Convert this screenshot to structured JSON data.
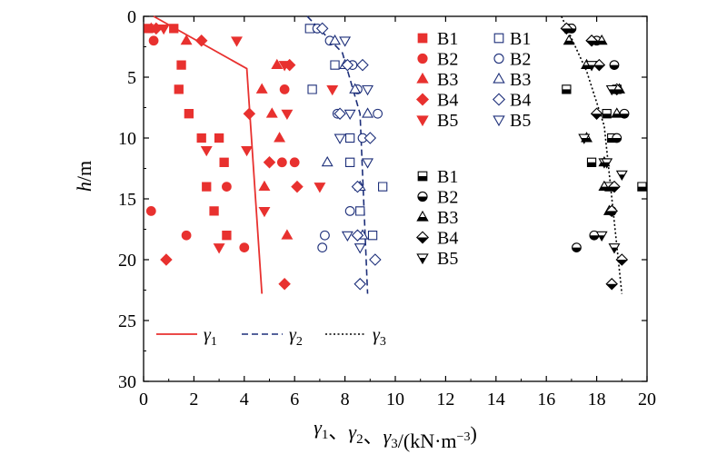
{
  "chart_data": {
    "type": "scatter",
    "title": "",
    "xlabel": "γ1、γ2、γ3/(kN·m−3)",
    "ylabel": "h/m",
    "xlim": [
      0,
      20
    ],
    "ylim": [
      0,
      30
    ],
    "y_inverted": true,
    "x_axis_position": "top",
    "x_ticks": [
      "0",
      "2",
      "4",
      "6",
      "8",
      "10",
      "12",
      "14",
      "16",
      "18",
      "20"
    ],
    "y_ticks": [
      "0",
      "5",
      "10",
      "15",
      "20",
      "25",
      "30"
    ],
    "grid": false,
    "colors": {
      "gamma1": "#e8312f",
      "gamma2": "#1d2f7a",
      "gamma3": "#000000"
    },
    "lines": [
      {
        "name": "γ1",
        "style": "solid",
        "color": "#e8312f",
        "points": [
          [
            0.4,
            0
          ],
          [
            4.1,
            4.3
          ],
          [
            4.7,
            22.8
          ]
        ]
      },
      {
        "name": "γ2",
        "style": "dashed",
        "color": "#1d2f7a",
        "points": [
          [
            6.5,
            0
          ],
          [
            7.9,
            3
          ],
          [
            8.6,
            8
          ],
          [
            8.9,
            22.8
          ]
        ]
      },
      {
        "name": "γ3",
        "style": "dotted",
        "color": "#000000",
        "points": [
          [
            16.6,
            0
          ],
          [
            17.6,
            4.5
          ],
          [
            18.3,
            9
          ],
          [
            19.0,
            22.8
          ]
        ]
      }
    ],
    "series": [
      {
        "name": "B1",
        "group": "gamma1",
        "marker": "square-filled",
        "points": [
          [
            0.2,
            1
          ],
          [
            1.2,
            1
          ],
          [
            1.5,
            4
          ],
          [
            1.4,
            6
          ],
          [
            1.8,
            8
          ],
          [
            2.3,
            10
          ],
          [
            3.0,
            10
          ],
          [
            3.2,
            12
          ],
          [
            2.5,
            14
          ],
          [
            2.8,
            16
          ],
          [
            3.3,
            18
          ]
        ]
      },
      {
        "name": "B2",
        "group": "gamma1",
        "marker": "circle-filled",
        "points": [
          [
            0.4,
            2
          ],
          [
            3.3,
            14
          ],
          [
            0.3,
            16
          ],
          [
            1.7,
            18
          ],
          [
            4.0,
            19
          ],
          [
            5.6,
            6
          ],
          [
            6.0,
            12
          ],
          [
            5.5,
            12
          ]
        ]
      },
      {
        "name": "B3",
        "group": "gamma1",
        "marker": "triangle-up-filled",
        "points": [
          [
            0.3,
            1
          ],
          [
            1.7,
            2
          ],
          [
            5.3,
            4
          ],
          [
            4.7,
            6
          ],
          [
            5.1,
            8
          ],
          [
            5.4,
            10
          ],
          [
            4.8,
            14
          ],
          [
            5.7,
            18
          ]
        ]
      },
      {
        "name": "B4",
        "group": "gamma1",
        "marker": "diamond-filled",
        "points": [
          [
            0.5,
            1
          ],
          [
            2.3,
            2
          ],
          [
            5.8,
            4
          ],
          [
            4.2,
            8
          ],
          [
            5.0,
            12
          ],
          [
            6.1,
            14
          ],
          [
            5.6,
            22
          ],
          [
            0.9,
            20
          ]
        ]
      },
      {
        "name": "B5",
        "group": "gamma1",
        "marker": "triangle-down-filled",
        "points": [
          [
            0.8,
            1
          ],
          [
            3.7,
            2
          ],
          [
            5.6,
            4
          ],
          [
            7.5,
            6
          ],
          [
            2.5,
            11
          ],
          [
            4.1,
            11
          ],
          [
            5.7,
            8
          ],
          [
            7.0,
            14
          ],
          [
            4.8,
            16
          ],
          [
            3.0,
            19
          ]
        ]
      },
      {
        "name": "B1",
        "group": "gamma2",
        "marker": "square-open",
        "points": [
          [
            6.6,
            1
          ],
          [
            7.6,
            4
          ],
          [
            6.7,
            6
          ],
          [
            8.2,
            10
          ],
          [
            8.2,
            12
          ],
          [
            9.5,
            14
          ],
          [
            8.6,
            16
          ],
          [
            9.1,
            18
          ]
        ]
      },
      {
        "name": "B2",
        "group": "gamma2",
        "marker": "circle-open",
        "points": [
          [
            6.9,
            1
          ],
          [
            7.4,
            2
          ],
          [
            8.5,
            6
          ],
          [
            8.7,
            10
          ],
          [
            8.2,
            16
          ],
          [
            7.2,
            18
          ],
          [
            7.1,
            19
          ],
          [
            8.3,
            4
          ],
          [
            9.3,
            8
          ],
          [
            7.7,
            8
          ]
        ]
      },
      {
        "name": "B3",
        "group": "gamma2",
        "marker": "triangle-up-open",
        "points": [
          [
            7.6,
            2
          ],
          [
            8.0,
            4
          ],
          [
            8.9,
            8
          ],
          [
            7.3,
            12
          ],
          [
            8.6,
            14
          ],
          [
            8.7,
            18
          ],
          [
            8.4,
            6
          ]
        ]
      },
      {
        "name": "B4",
        "group": "gamma2",
        "marker": "diamond-open",
        "points": [
          [
            7.1,
            1
          ],
          [
            8.7,
            4
          ],
          [
            7.8,
            8
          ],
          [
            9.0,
            10
          ],
          [
            8.5,
            14
          ],
          [
            8.5,
            18
          ],
          [
            9.2,
            20
          ],
          [
            8.6,
            22
          ],
          [
            8.1,
            4
          ]
        ]
      },
      {
        "name": "B5",
        "group": "gamma2",
        "marker": "triangle-down-open",
        "points": [
          [
            8.0,
            2
          ],
          [
            8.9,
            6
          ],
          [
            8.2,
            8
          ],
          [
            7.8,
            10
          ],
          [
            8.9,
            12
          ],
          [
            8.1,
            18
          ],
          [
            8.6,
            19
          ]
        ]
      },
      {
        "name": "B1",
        "group": "gamma3",
        "marker": "square-half",
        "points": [
          [
            16.9,
            1
          ],
          [
            16.8,
            6
          ],
          [
            18.8,
            6
          ],
          [
            18.4,
            8
          ],
          [
            18.6,
            10
          ],
          [
            17.8,
            12
          ],
          [
            19.8,
            14
          ],
          [
            18.5,
            14
          ]
        ]
      },
      {
        "name": "B2",
        "group": "gamma3",
        "marker": "circle-half",
        "points": [
          [
            17.0,
            1
          ],
          [
            18.0,
            2
          ],
          [
            18.7,
            4
          ],
          [
            19.1,
            8
          ],
          [
            18.8,
            10
          ],
          [
            18.6,
            16
          ],
          [
            17.9,
            18
          ],
          [
            17.2,
            19
          ]
        ]
      },
      {
        "name": "B3",
        "group": "gamma3",
        "marker": "triangle-up-half",
        "points": [
          [
            16.9,
            2
          ],
          [
            18.2,
            2
          ],
          [
            17.6,
            4
          ],
          [
            18.9,
            6
          ],
          [
            18.8,
            8
          ],
          [
            17.6,
            10
          ],
          [
            18.3,
            12
          ],
          [
            18.3,
            14
          ],
          [
            18.5,
            16
          ]
        ]
      },
      {
        "name": "B4",
        "group": "gamma3",
        "marker": "diamond-half",
        "points": [
          [
            16.8,
            1
          ],
          [
            17.8,
            2
          ],
          [
            18.1,
            4
          ],
          [
            18.0,
            8
          ],
          [
            18.7,
            14
          ],
          [
            18.6,
            16
          ],
          [
            19.0,
            20
          ],
          [
            18.6,
            22
          ],
          [
            18.8,
            6
          ]
        ]
      },
      {
        "name": "B5",
        "group": "gamma3",
        "marker": "triangle-down-half",
        "points": [
          [
            17.8,
            4
          ],
          [
            18.6,
            6
          ],
          [
            17.5,
            10
          ],
          [
            18.3,
            12
          ],
          [
            19.0,
            13
          ],
          [
            18.2,
            18
          ],
          [
            18.7,
            19
          ],
          [
            18.4,
            12
          ]
        ]
      }
    ],
    "legend_markers": [
      {
        "position": "top-right",
        "entries": [
          {
            "label": "B1",
            "marker": "square-filled",
            "group": "gamma1"
          },
          {
            "label": "B2",
            "marker": "circle-filled",
            "group": "gamma1"
          },
          {
            "label": "B3",
            "marker": "triangle-up-filled",
            "group": "gamma1"
          },
          {
            "label": "B4",
            "marker": "diamond-filled",
            "group": "gamma1"
          },
          {
            "label": "B5",
            "marker": "triangle-down-filled",
            "group": "gamma1"
          }
        ]
      },
      {
        "position": "top-right",
        "entries": [
          {
            "label": "B1",
            "marker": "square-open",
            "group": "gamma2"
          },
          {
            "label": "B2",
            "marker": "circle-open",
            "group": "gamma2"
          },
          {
            "label": "B3",
            "marker": "triangle-up-open",
            "group": "gamma2"
          },
          {
            "label": "B4",
            "marker": "diamond-open",
            "group": "gamma2"
          },
          {
            "label": "B5",
            "marker": "triangle-down-open",
            "group": "gamma2"
          }
        ]
      },
      {
        "position": "right",
        "entries": [
          {
            "label": "B1",
            "marker": "square-half",
            "group": "gamma3"
          },
          {
            "label": "B2",
            "marker": "circle-half",
            "group": "gamma3"
          },
          {
            "label": "B3",
            "marker": "triangle-up-half",
            "group": "gamma3"
          },
          {
            "label": "B4",
            "marker": "diamond-half",
            "group": "gamma3"
          },
          {
            "label": "B5",
            "marker": "triangle-down-half",
            "group": "gamma3"
          }
        ]
      }
    ],
    "legend_lines": {
      "position": "bottom-left",
      "entries": [
        {
          "label": "γ1",
          "style": "solid",
          "group": "gamma1"
        },
        {
          "label": "γ2",
          "style": "dashed",
          "group": "gamma2"
        },
        {
          "label": "γ3",
          "style": "dotted",
          "group": "gamma3"
        }
      ]
    }
  }
}
